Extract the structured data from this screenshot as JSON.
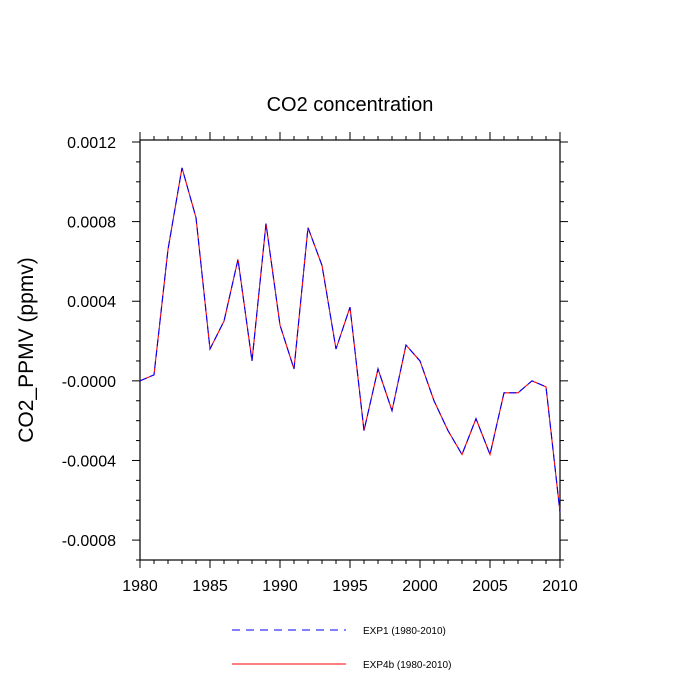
{
  "chart_data": {
    "type": "line",
    "title": "CO2 concentration",
    "xlabel": "",
    "ylabel": "CO2_PPMV  (ppmv)",
    "xlim": [
      1980,
      2010
    ],
    "ylim": [
      -0.0009,
      0.00121
    ],
    "x_ticks": [
      1980,
      1985,
      1990,
      1995,
      2000,
      2005,
      2010
    ],
    "x_tick_labels": [
      "1980",
      "1985",
      "1990",
      "1995",
      "2000",
      "2005",
      "2010"
    ],
    "y_ticks": [
      -0.0008,
      -0.0004,
      0,
      0.0004,
      0.0008,
      0.0012
    ],
    "y_tick_labels": [
      "-0.0008",
      "-0.0004",
      "-0.0000",
      "0.0004",
      "0.0008",
      "0.0012"
    ],
    "x": [
      1980,
      1981,
      1982,
      1983,
      1984,
      1985,
      1986,
      1987,
      1988,
      1989,
      1990,
      1991,
      1992,
      1993,
      1994,
      1995,
      1996,
      1997,
      1998,
      1999,
      2000,
      2001,
      2002,
      2003,
      2004,
      2005,
      2006,
      2007,
      2008,
      2009,
      2010
    ],
    "series": [
      {
        "name": "EXP1 (1980-2010)",
        "color": "#0000ff",
        "style": "dashed",
        "values": [
          0.0,
          3e-05,
          0.00066,
          0.00107,
          0.00082,
          0.00016,
          0.0003,
          0.00061,
          0.0001,
          0.00079,
          0.00028,
          6e-05,
          0.00077,
          0.00058,
          0.00016,
          0.00037,
          -0.00025,
          6e-05,
          -0.00015,
          0.00018,
          0.0001,
          -0.0001,
          -0.00025,
          -0.00037,
          -0.00019,
          -0.00037,
          -6e-05,
          -6e-05,
          0.0,
          -3e-05,
          -0.00066
        ]
      },
      {
        "name": "EXP4b (1980-2010)",
        "color": "#ff0000",
        "style": "solid",
        "values": [
          0.0,
          3e-05,
          0.00066,
          0.00107,
          0.00082,
          0.00016,
          0.0003,
          0.00061,
          0.0001,
          0.00079,
          0.00028,
          6e-05,
          0.00077,
          0.00058,
          0.00016,
          0.00037,
          -0.00025,
          6e-05,
          -0.00015,
          0.00018,
          0.0001,
          -0.0001,
          -0.00025,
          -0.00037,
          -0.00019,
          -0.00037,
          -6e-05,
          -6e-05,
          0.0,
          -3e-05,
          -0.00066
        ]
      }
    ],
    "legend": [
      {
        "label": "EXP1 (1980-2010)",
        "color": "#0000ff",
        "style": "dashed"
      },
      {
        "label": "EXP4b (1980-2010)",
        "color": "#ff0000",
        "style": "solid"
      }
    ],
    "legend_position": "bottom-center",
    "grid": false
  }
}
